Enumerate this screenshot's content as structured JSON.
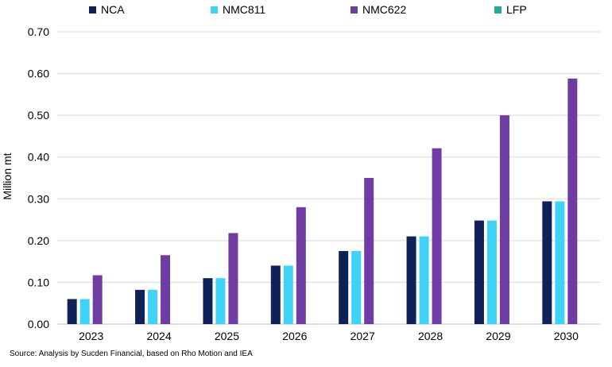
{
  "chart_data": {
    "type": "bar",
    "categories": [
      "2023",
      "2024",
      "2025",
      "2026",
      "2027",
      "2028",
      "2029",
      "2030"
    ],
    "series": [
      {
        "name": "NCA",
        "color": "#0f2156",
        "values": [
          0.06,
          0.082,
          0.11,
          0.14,
          0.175,
          0.21,
          0.248,
          0.294
        ]
      },
      {
        "name": "NMC811",
        "color": "#3fd4f7",
        "values": [
          0.06,
          0.082,
          0.11,
          0.14,
          0.175,
          0.21,
          0.248,
          0.294
        ]
      },
      {
        "name": "NMC622",
        "color": "#6f3ca3",
        "values": [
          0.117,
          0.165,
          0.218,
          0.28,
          0.35,
          0.421,
          0.5,
          0.588
        ]
      },
      {
        "name": "LFP",
        "color": "#22a99a",
        "values": [
          0,
          0,
          0,
          0,
          0,
          0,
          0,
          0
        ]
      }
    ],
    "ylabel": "Million mt",
    "xlabel": "",
    "ylim": [
      0,
      0.7
    ],
    "yticks": [
      "0.00",
      "0.10",
      "0.20",
      "0.30",
      "0.40",
      "0.50",
      "0.60",
      "0.70"
    ],
    "grid": true,
    "legend_position": "top",
    "source": "Source: Analysis by Sucden Financial, based on Rho Motion and IEA"
  }
}
